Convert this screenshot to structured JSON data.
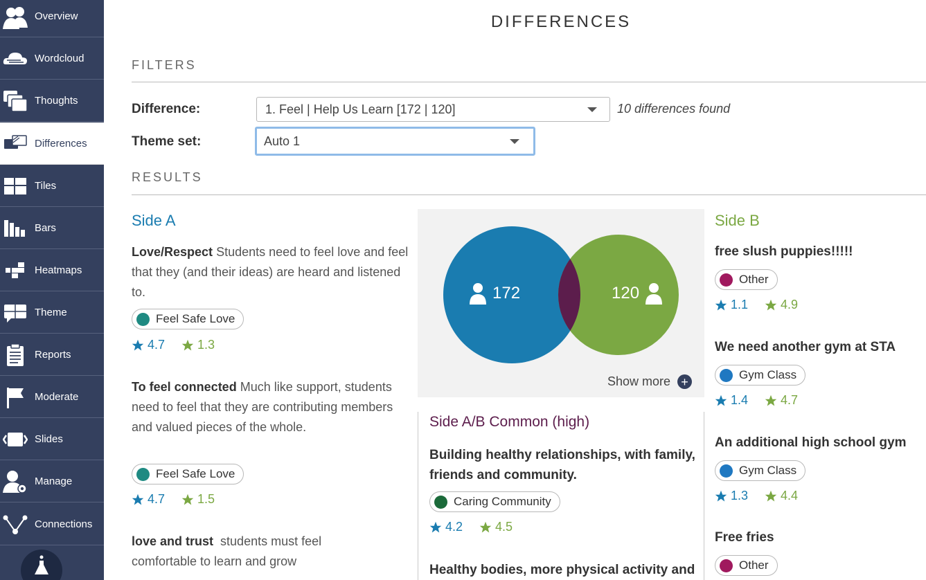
{
  "sidebar": {
    "items": [
      {
        "label": "Overview",
        "icon": "people-icon"
      },
      {
        "label": "Wordcloud",
        "icon": "cloud-icon"
      },
      {
        "label": "Thoughts",
        "icon": "chat-bubbles-icon"
      },
      {
        "label": "Differences",
        "icon": "differences-icon",
        "active": true
      },
      {
        "label": "Tiles",
        "icon": "tiles-icon"
      },
      {
        "label": "Bars",
        "icon": "bars-icon"
      },
      {
        "label": "Heatmaps",
        "icon": "heatmap-icon"
      },
      {
        "label": "Theme",
        "icon": "theme-icon"
      },
      {
        "label": "Reports",
        "icon": "clipboard-icon"
      },
      {
        "label": "Moderate",
        "icon": "flag-icon"
      },
      {
        "label": "Slides",
        "icon": "slides-icon"
      },
      {
        "label": "Manage",
        "icon": "user-gear-icon"
      },
      {
        "label": "Connections",
        "icon": "connections-icon"
      }
    ]
  },
  "page": {
    "title": "DIFFERENCES"
  },
  "filters": {
    "title": "FILTERS",
    "difference_label": "Difference:",
    "difference_value": "1. Feel | Help Us Learn [172 | 120]",
    "found_text": "10 differences found",
    "theme_set_label": "Theme set:",
    "theme_set_value": "Auto 1"
  },
  "results": {
    "title": "RESULTS",
    "side_a": {
      "title": "Side A",
      "items": [
        {
          "name": "Love/Respect",
          "desc": "Students need to feel love and feel that they (and their ideas) are heard and listened to.",
          "tag": "Feel Safe Love",
          "rating_a": "4.7",
          "rating_b": "1.3"
        },
        {
          "name": "To feel connected",
          "desc": "Much like support, students need to feel that they are contributing members and valued pieces of the whole.",
          "tag": "Feel Safe Love",
          "rating_a": "4.7",
          "rating_b": "1.5"
        },
        {
          "name": "love and trust",
          "desc": "students must feel comfortable to learn and grow"
        }
      ]
    },
    "venn": {
      "count_a": "172",
      "count_b": "120",
      "show_more": "Show more"
    },
    "common": {
      "title": "Side A/B Common (high)",
      "items": [
        {
          "name": "Building healthy relationships, with family, friends and community.",
          "tag": "Caring Community",
          "rating_a": "4.2",
          "rating_b": "4.5"
        },
        {
          "name": "Healthy bodies, more physical activity and"
        }
      ]
    },
    "side_b": {
      "title": "Side B",
      "items": [
        {
          "name": "free slush puppies!!!!!",
          "tag": "Other",
          "rating_a": "1.1",
          "rating_b": "4.9"
        },
        {
          "name": "We need another gym at STA",
          "tag": "Gym Class",
          "rating_a": "1.4",
          "rating_b": "4.7"
        },
        {
          "name": "An additional high school gym",
          "tag": "Gym Class",
          "rating_a": "1.3",
          "rating_b": "4.4"
        },
        {
          "name": "Free fries",
          "tag": "Other"
        }
      ]
    }
  },
  "colors": {
    "sidebar": "#34405e",
    "side_a": "#1a7cb0",
    "side_b": "#7ba843",
    "overlap": "#5c1d4c",
    "tag_feel_safe_love": "#1f8a82",
    "tag_caring_community": "#1b6a3a",
    "tag_other": "#a0195e",
    "tag_gym_class": "#1f78c1"
  }
}
